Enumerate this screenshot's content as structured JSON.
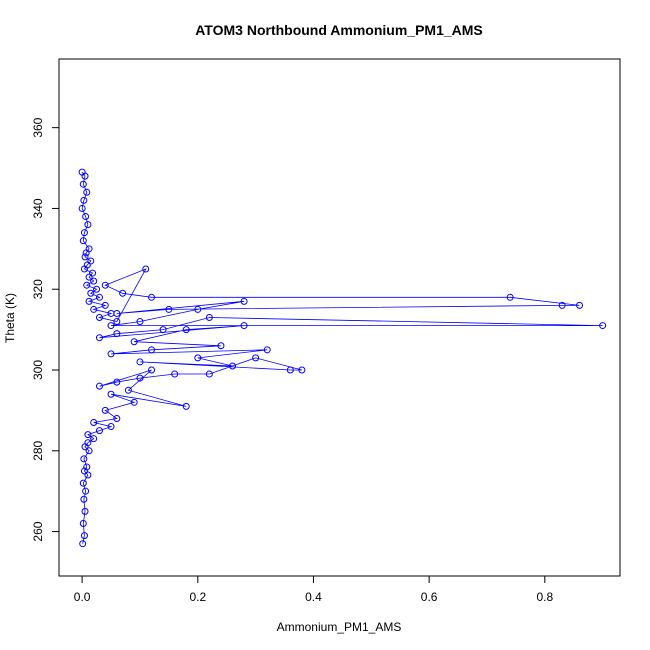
{
  "chart_data": {
    "type": "scatter",
    "title": "ATOM3 Northbound Ammonium_PM1_AMS",
    "xlabel": "Ammonium_PM1_AMS",
    "ylabel": "Theta (K)",
    "xlim": [
      -0.04,
      0.93
    ],
    "ylim": [
      249,
      377
    ],
    "xticks": [
      0.0,
      0.2,
      0.4,
      0.6,
      0.8
    ],
    "xtick_labels": [
      "0.0",
      "0.2",
      "0.4",
      "0.6",
      "0.8"
    ],
    "yticks": [
      260,
      280,
      300,
      320,
      340,
      360
    ],
    "ytick_labels": [
      "260",
      "280",
      "300",
      "320",
      "340",
      "360"
    ],
    "grid": false,
    "legend": "none",
    "marker": "open-circle",
    "color": "#0000ff",
    "series": [
      {
        "x": [
          0.0,
          0.005,
          0.002,
          0.008,
          0.003,
          0.0,
          0.006,
          0.01,
          0.004,
          0.002,
          0.012,
          0.007,
          0.005,
          0.015,
          0.009,
          0.004,
          0.018,
          0.012,
          0.02,
          0.008,
          0.025,
          0.015,
          0.03,
          0.012,
          0.04,
          0.02,
          0.05,
          0.03,
          0.06,
          0.11,
          0.04,
          0.07,
          0.12,
          0.74,
          0.86,
          0.83,
          0.15,
          0.06,
          0.28,
          0.2,
          0.1,
          0.05,
          0.9,
          0.22,
          0.14,
          0.06,
          0.03,
          0.28,
          0.18,
          0.09,
          0.24,
          0.12,
          0.05,
          0.32,
          0.2,
          0.26,
          0.1,
          0.36,
          0.38,
          0.3,
          0.22,
          0.16,
          0.1,
          0.06,
          0.03,
          0.12,
          0.08,
          0.18,
          0.05,
          0.09,
          0.04,
          0.06,
          0.02,
          0.05,
          0.03,
          0.01,
          0.02,
          0.01,
          0.005,
          0.012,
          0.003,
          0.008,
          0.004,
          0.01,
          0.002,
          0.006,
          0.003,
          0.005,
          0.002,
          0.004,
          0.001
        ],
        "y": [
          349,
          348,
          346,
          344,
          342,
          340,
          338,
          336,
          334,
          332,
          330,
          329,
          328,
          327,
          326,
          325,
          324,
          323,
          322,
          321,
          320,
          319,
          318,
          317,
          316,
          315,
          314,
          313,
          312,
          325,
          321,
          319,
          318,
          318,
          316,
          316,
          315,
          314,
          317,
          315,
          312,
          311,
          311,
          313,
          310,
          309,
          308,
          311,
          310,
          307,
          306,
          305,
          304,
          305,
          303,
          301,
          302,
          300,
          300,
          303,
          299,
          299,
          298,
          297,
          296,
          300,
          295,
          291,
          294,
          292,
          290,
          288,
          287,
          286,
          285,
          284,
          283,
          282,
          281,
          280,
          278,
          276,
          275,
          274,
          272,
          270,
          268,
          265,
          262,
          259,
          257
        ]
      }
    ]
  }
}
